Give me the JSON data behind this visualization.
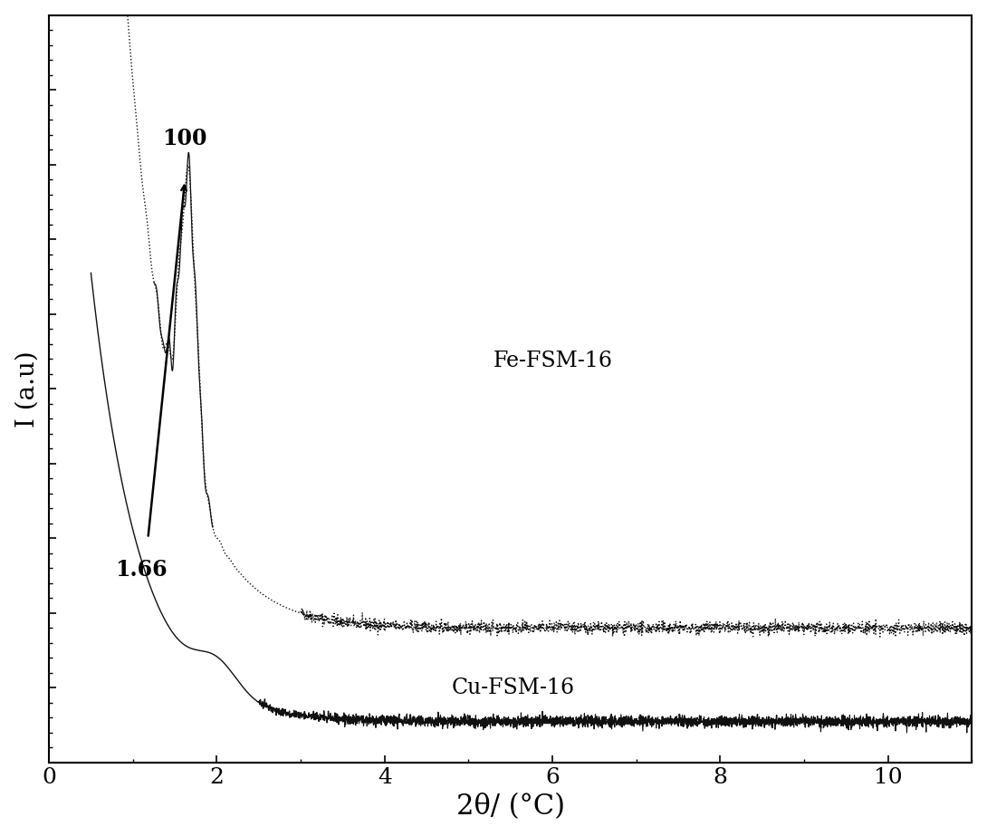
{
  "xlabel": "2θ/ (°C)",
  "ylabel": "I (a.u)",
  "xlim": [
    0,
    11
  ],
  "ylim_min": 0,
  "ylim_max": 1.0,
  "xlabel_fontsize": 22,
  "ylabel_fontsize": 20,
  "tick_fontsize": 18,
  "annotation_100": "100",
  "annotation_166": "1.66",
  "label_fe": "Fe-FSM-16",
  "label_cu": "Cu-FSM-16",
  "background_color": "#ffffff",
  "line_color": "#111111",
  "x_ticks": [
    0,
    2,
    4,
    6,
    8,
    10
  ]
}
